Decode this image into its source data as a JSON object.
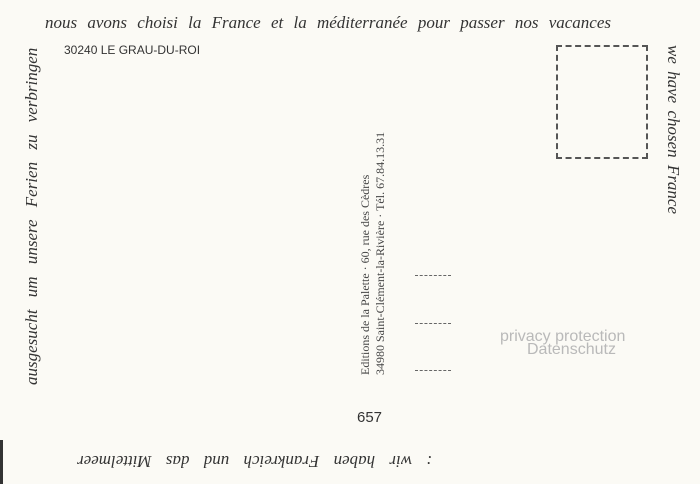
{
  "message": {
    "top": "nous avons choisi la France et la méditerranée pour passer nos vacances",
    "right": "we have chosen France",
    "left": "ausgesucht um unsere Ferien zu verbringen",
    "bottom": ": wir haben Frankreich und das Mittelmeer"
  },
  "place": "30240 LE GRAU-DU-ROI",
  "publisher": {
    "line1": "Editions de la Palette · 60, rue des Cèdres",
    "line2": "34980 Saint-Clément-la-Rivière · Tél. 67.84.13.31"
  },
  "card_number": "657",
  "watermark": {
    "line1": "privacy protection",
    "line2": "Datenschutz"
  }
}
